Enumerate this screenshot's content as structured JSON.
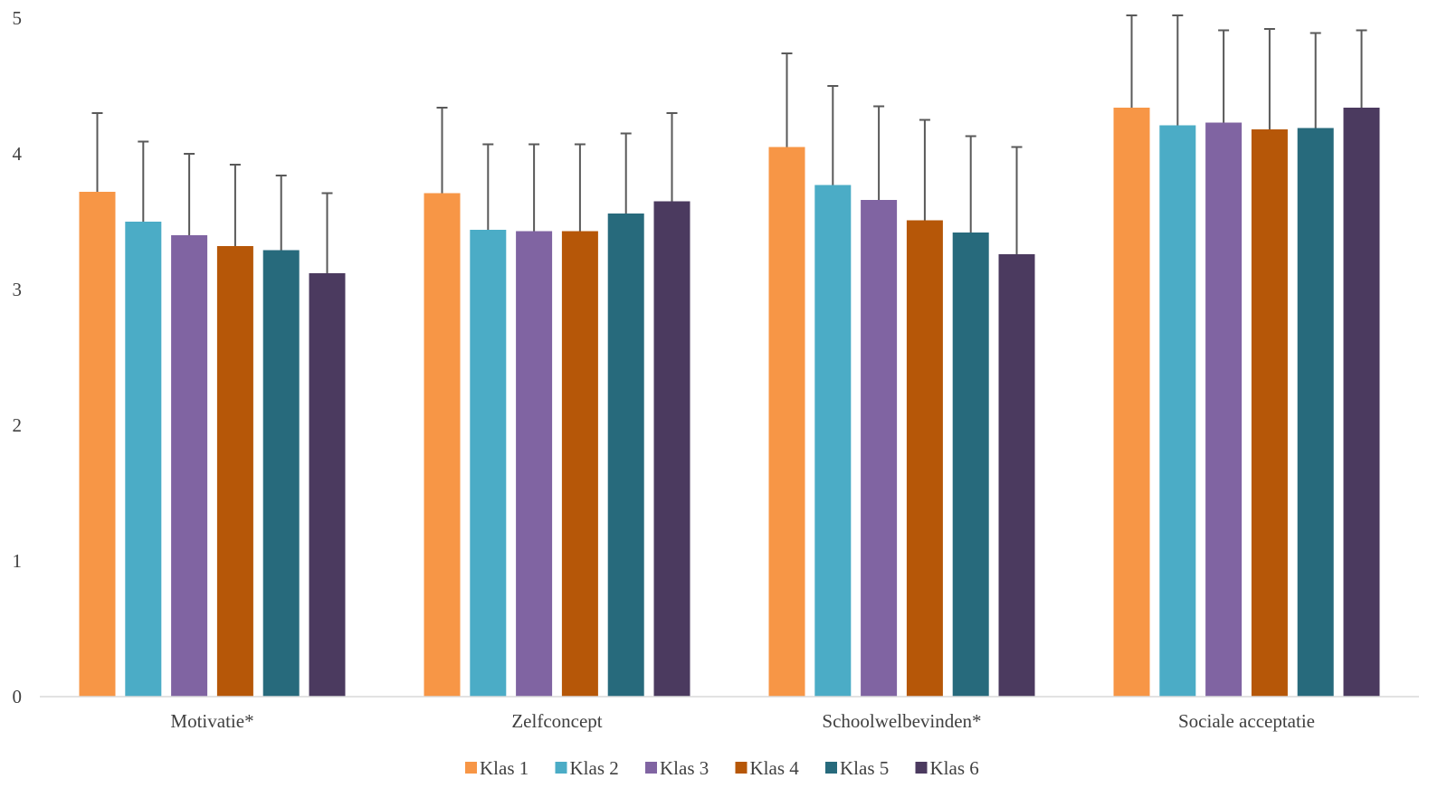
{
  "chart_data": {
    "type": "bar",
    "categories": [
      "Motivatie*",
      "Zelfconcept",
      "Schoolwelbevinden*",
      "Sociale acceptatie"
    ],
    "series": [
      {
        "name": "Klas 1",
        "color": "#F79646",
        "values": [
          3.72,
          3.71,
          4.05,
          4.34
        ],
        "error_upper": [
          4.3,
          4.34,
          4.74,
          5.0
        ]
      },
      {
        "name": "Klas 2",
        "color": "#4BACC6",
        "values": [
          3.5,
          3.44,
          3.77,
          4.21
        ],
        "error_upper": [
          4.09,
          4.07,
          4.5,
          5.0
        ]
      },
      {
        "name": "Klas 3",
        "color": "#8064A2",
        "values": [
          3.4,
          3.43,
          3.66,
          4.23
        ],
        "error_upper": [
          4.0,
          4.07,
          4.35,
          4.91
        ]
      },
      {
        "name": "Klas 4",
        "color": "#B65708",
        "values": [
          3.32,
          3.43,
          3.51,
          4.18
        ],
        "error_upper": [
          3.92,
          4.07,
          4.25,
          4.92
        ]
      },
      {
        "name": "Klas 5",
        "color": "#276A7C",
        "values": [
          3.29,
          3.56,
          3.42,
          4.19
        ],
        "error_upper": [
          3.84,
          4.15,
          4.13,
          4.89
        ]
      },
      {
        "name": "Klas 6",
        "color": "#4B3A5F",
        "values": [
          3.12,
          3.65,
          3.26,
          4.34
        ],
        "error_upper": [
          3.71,
          4.3,
          4.05,
          4.91
        ]
      }
    ],
    "ylim": [
      0,
      5
    ],
    "yticks": [
      0,
      1,
      2,
      3,
      4,
      5
    ],
    "title": "",
    "xlabel": "",
    "ylabel": "",
    "grid": false,
    "legend_position": "bottom"
  }
}
